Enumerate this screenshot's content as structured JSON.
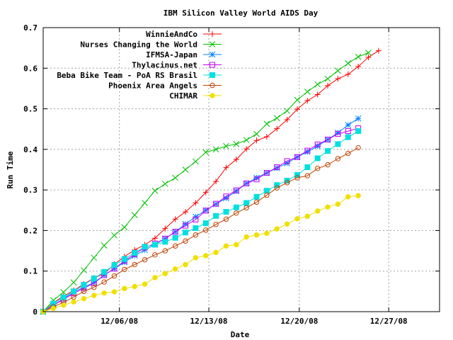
{
  "chart_data": {
    "type": "line",
    "title": "IBM Silicon Valley World AIDS Day",
    "xlabel": "Date",
    "ylabel": "Run Time",
    "xlim": [
      0,
      39
    ],
    "ylim": [
      0,
      0.7
    ],
    "x_ticks": [
      {
        "x": 7.5,
        "label": "12/06/08"
      },
      {
        "x": 16.3,
        "label": "12/13/08"
      },
      {
        "x": 25.2,
        "label": "12/20/08"
      },
      {
        "x": 34.0,
        "label": "12/27/08"
      }
    ],
    "y_ticks": [
      {
        "y": 0,
        "label": "0"
      },
      {
        "y": 0.1,
        "label": "0.1"
      },
      {
        "y": 0.2,
        "label": "0.2"
      },
      {
        "y": 0.3,
        "label": "0.3"
      },
      {
        "y": 0.4,
        "label": "0.4"
      },
      {
        "y": 0.5,
        "label": "0.5"
      },
      {
        "y": 0.6,
        "label": "0.6"
      },
      {
        "y": 0.7,
        "label": "0.7"
      }
    ],
    "grid": true,
    "legend_position": "top-right",
    "series": [
      {
        "name": "WinnieAndCo",
        "color": "#ff0000",
        "marker": "plus",
        "values": [
          [
            0,
            0
          ],
          [
            1,
            0.022
          ],
          [
            2,
            0.038
          ],
          [
            3,
            0.052
          ],
          [
            4,
            0.068
          ],
          [
            5,
            0.083
          ],
          [
            6,
            0.094
          ],
          [
            7,
            0.117
          ],
          [
            8,
            0.136
          ],
          [
            9,
            0.152
          ],
          [
            10,
            0.165
          ],
          [
            11,
            0.181
          ],
          [
            12,
            0.205
          ],
          [
            13,
            0.228
          ],
          [
            14,
            0.246
          ],
          [
            15,
            0.268
          ],
          [
            16,
            0.294
          ],
          [
            17,
            0.321
          ],
          [
            18,
            0.355
          ],
          [
            19,
            0.375
          ],
          [
            20,
            0.401
          ],
          [
            21,
            0.422
          ],
          [
            22,
            0.431
          ],
          [
            23,
            0.451
          ],
          [
            24,
            0.473
          ],
          [
            25,
            0.499
          ],
          [
            26,
            0.52
          ],
          [
            27,
            0.535
          ],
          [
            28,
            0.557
          ],
          [
            29,
            0.574
          ],
          [
            30,
            0.585
          ],
          [
            31,
            0.604
          ],
          [
            32,
            0.627
          ],
          [
            33,
            0.643
          ]
        ]
      },
      {
        "name": "Nurses Changing the World",
        "color": "#00c000",
        "marker": "x",
        "values": [
          [
            0,
            0
          ],
          [
            1,
            0.028
          ],
          [
            2,
            0.048
          ],
          [
            3,
            0.072
          ],
          [
            4,
            0.102
          ],
          [
            5,
            0.133
          ],
          [
            6,
            0.163
          ],
          [
            7,
            0.188
          ],
          [
            8,
            0.208
          ],
          [
            9,
            0.238
          ],
          [
            10,
            0.268
          ],
          [
            11,
            0.298
          ],
          [
            12,
            0.315
          ],
          [
            13,
            0.33
          ],
          [
            14,
            0.35
          ],
          [
            15,
            0.37
          ],
          [
            16,
            0.393
          ],
          [
            17,
            0.4
          ],
          [
            18,
            0.408
          ],
          [
            19,
            0.413
          ],
          [
            20,
            0.423
          ],
          [
            21,
            0.438
          ],
          [
            22,
            0.463
          ],
          [
            23,
            0.477
          ],
          [
            24,
            0.495
          ],
          [
            25,
            0.522
          ],
          [
            26,
            0.542
          ],
          [
            27,
            0.56
          ],
          [
            28,
            0.574
          ],
          [
            29,
            0.594
          ],
          [
            30,
            0.612
          ],
          [
            31,
            0.628
          ],
          [
            32,
            0.638
          ]
        ]
      },
      {
        "name": "IFMSA-Japan",
        "color": "#0080ff",
        "marker": "star",
        "values": [
          [
            0,
            0
          ],
          [
            1,
            0.016
          ],
          [
            2,
            0.032
          ],
          [
            3,
            0.048
          ],
          [
            4,
            0.06
          ],
          [
            5,
            0.072
          ],
          [
            6,
            0.09
          ],
          [
            7,
            0.106
          ],
          [
            8,
            0.122
          ],
          [
            9,
            0.138
          ],
          [
            10,
            0.152
          ],
          [
            11,
            0.166
          ],
          [
            12,
            0.18
          ],
          [
            13,
            0.197
          ],
          [
            14,
            0.216
          ],
          [
            15,
            0.234
          ],
          [
            16,
            0.25
          ],
          [
            17,
            0.265
          ],
          [
            18,
            0.28
          ],
          [
            19,
            0.297
          ],
          [
            20,
            0.316
          ],
          [
            21,
            0.33
          ],
          [
            22,
            0.342
          ],
          [
            23,
            0.354
          ],
          [
            24,
            0.366
          ],
          [
            25,
            0.381
          ],
          [
            26,
            0.394
          ],
          [
            27,
            0.408
          ],
          [
            28,
            0.424
          ],
          [
            29,
            0.441
          ],
          [
            30,
            0.46
          ],
          [
            31,
            0.476
          ]
        ]
      },
      {
        "name": "Thylacinus.net",
        "color": "#c000ff",
        "marker": "box",
        "values": [
          [
            0,
            0
          ],
          [
            1,
            0.016
          ],
          [
            2,
            0.03
          ],
          [
            3,
            0.045
          ],
          [
            4,
            0.058
          ],
          [
            5,
            0.07
          ],
          [
            6,
            0.09
          ],
          [
            7,
            0.106
          ],
          [
            8,
            0.125
          ],
          [
            9,
            0.142
          ],
          [
            10,
            0.158
          ],
          [
            11,
            0.168
          ],
          [
            12,
            0.18
          ],
          [
            13,
            0.197
          ],
          [
            14,
            0.212
          ],
          [
            15,
            0.227
          ],
          [
            16,
            0.249
          ],
          [
            17,
            0.266
          ],
          [
            18,
            0.284
          ],
          [
            19,
            0.299
          ],
          [
            20,
            0.316
          ],
          [
            21,
            0.326
          ],
          [
            22,
            0.342
          ],
          [
            23,
            0.356
          ],
          [
            24,
            0.371
          ],
          [
            25,
            0.381
          ],
          [
            26,
            0.397
          ],
          [
            27,
            0.412
          ],
          [
            28,
            0.424
          ],
          [
            29,
            0.438
          ],
          [
            30,
            0.445
          ],
          [
            31,
            0.452
          ]
        ]
      },
      {
        "name": "Beba Bike Team - PoA RS Brasil",
        "color": "#00e0e0",
        "marker": "filled-box",
        "values": [
          [
            0,
            0
          ],
          [
            1,
            0.02
          ],
          [
            2,
            0.035
          ],
          [
            3,
            0.05
          ],
          [
            4,
            0.066
          ],
          [
            5,
            0.082
          ],
          [
            6,
            0.098
          ],
          [
            7,
            0.115
          ],
          [
            8,
            0.13
          ],
          [
            9,
            0.145
          ],
          [
            10,
            0.16
          ],
          [
            11,
            0.165
          ],
          [
            12,
            0.172
          ],
          [
            13,
            0.182
          ],
          [
            14,
            0.195
          ],
          [
            15,
            0.206
          ],
          [
            16,
            0.218
          ],
          [
            17,
            0.236
          ],
          [
            18,
            0.246
          ],
          [
            19,
            0.257
          ],
          [
            20,
            0.268
          ],
          [
            21,
            0.283
          ],
          [
            22,
            0.298
          ],
          [
            23,
            0.312
          ],
          [
            24,
            0.323
          ],
          [
            25,
            0.337
          ],
          [
            26,
            0.356
          ],
          [
            27,
            0.378
          ],
          [
            28,
            0.396
          ],
          [
            29,
            0.413
          ],
          [
            30,
            0.43
          ],
          [
            31,
            0.445
          ]
        ]
      },
      {
        "name": "Phoenix Area Angels",
        "color": "#c04000",
        "marker": "circle",
        "values": [
          [
            0,
            0
          ],
          [
            1,
            0.012
          ],
          [
            2,
            0.023
          ],
          [
            3,
            0.036
          ],
          [
            4,
            0.05
          ],
          [
            5,
            0.06
          ],
          [
            6,
            0.073
          ],
          [
            7,
            0.088
          ],
          [
            8,
            0.104
          ],
          [
            9,
            0.116
          ],
          [
            10,
            0.128
          ],
          [
            11,
            0.14
          ],
          [
            12,
            0.15
          ],
          [
            13,
            0.162
          ],
          [
            14,
            0.174
          ],
          [
            15,
            0.189
          ],
          [
            16,
            0.201
          ],
          [
            17,
            0.215
          ],
          [
            18,
            0.228
          ],
          [
            19,
            0.243
          ],
          [
            20,
            0.256
          ],
          [
            21,
            0.27
          ],
          [
            22,
            0.287
          ],
          [
            23,
            0.305
          ],
          [
            24,
            0.318
          ],
          [
            25,
            0.33
          ],
          [
            26,
            0.335
          ],
          [
            27,
            0.353
          ],
          [
            28,
            0.362
          ],
          [
            29,
            0.377
          ],
          [
            30,
            0.39
          ],
          [
            31,
            0.404
          ]
        ]
      },
      {
        "name": "CHIMAR",
        "color": "#f0e000",
        "marker": "filled-circle",
        "values": [
          [
            0,
            0
          ],
          [
            1,
            0.008
          ],
          [
            2,
            0.016
          ],
          [
            3,
            0.024
          ],
          [
            4,
            0.032
          ],
          [
            5,
            0.04
          ],
          [
            6,
            0.046
          ],
          [
            7,
            0.049
          ],
          [
            8,
            0.057
          ],
          [
            9,
            0.062
          ],
          [
            10,
            0.068
          ],
          [
            11,
            0.084
          ],
          [
            12,
            0.094
          ],
          [
            13,
            0.105
          ],
          [
            14,
            0.116
          ],
          [
            15,
            0.133
          ],
          [
            16,
            0.138
          ],
          [
            17,
            0.146
          ],
          [
            18,
            0.162
          ],
          [
            19,
            0.165
          ],
          [
            20,
            0.184
          ],
          [
            21,
            0.189
          ],
          [
            22,
            0.193
          ],
          [
            23,
            0.204
          ],
          [
            24,
            0.216
          ],
          [
            25,
            0.229
          ],
          [
            26,
            0.235
          ],
          [
            27,
            0.248
          ],
          [
            28,
            0.258
          ],
          [
            29,
            0.265
          ],
          [
            30,
            0.283
          ],
          [
            31,
            0.286
          ]
        ]
      }
    ]
  }
}
